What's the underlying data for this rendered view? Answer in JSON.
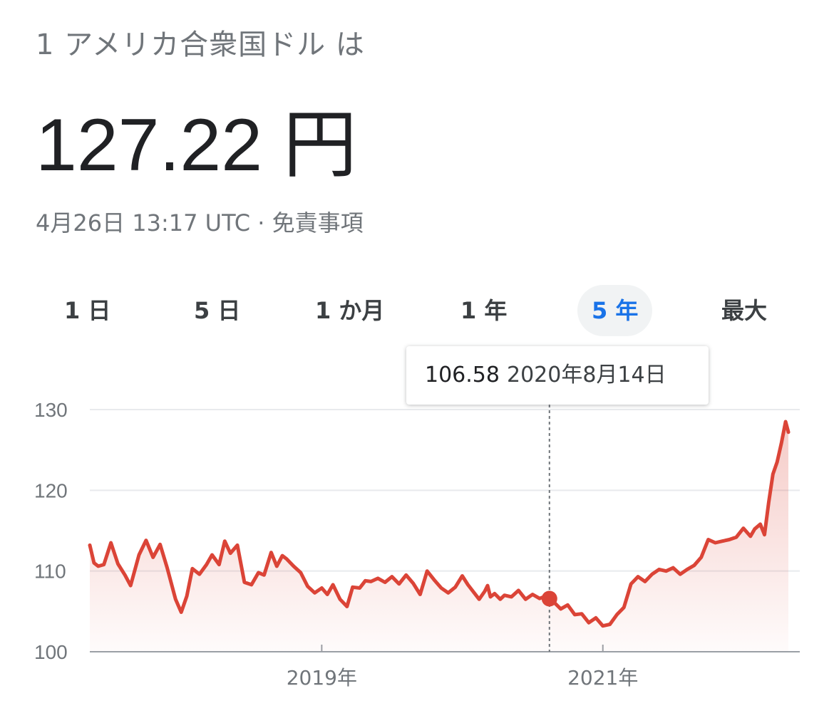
{
  "header": {
    "from_label": "1 アメリカ合衆国ドル は",
    "rate_value": "127.22 円",
    "timestamp": "4月26日 13:17 UTC",
    "separator": " · ",
    "disclaimer": "免責事項"
  },
  "range_tabs": [
    {
      "label": "1 日",
      "active": false
    },
    {
      "label": "5 日",
      "active": false
    },
    {
      "label": "1 か月",
      "active": false
    },
    {
      "label": "1 年",
      "active": false
    },
    {
      "label": "5 年",
      "active": true
    },
    {
      "label": "最大",
      "active": false
    }
  ],
  "tooltip": {
    "value": "106.58",
    "date": "2020年8月14日"
  },
  "colors": {
    "line": "#db4437",
    "fill": "#db4437",
    "accent": "#1a73e8",
    "grid": "#e8eaed"
  },
  "chart_data": {
    "type": "area",
    "title": "",
    "xlabel": "",
    "ylabel": "",
    "ylim": [
      100,
      130
    ],
    "yticks": [
      100,
      110,
      120,
      130
    ],
    "xticks": [
      "2019年",
      "2021年"
    ],
    "xtick_years": [
      2019,
      2021
    ],
    "xlim_years": [
      2017.35,
      2022.32
    ],
    "grid": true,
    "highlight": {
      "year": 2020.62,
      "value": 106.58
    },
    "series": [
      {
        "x": [
          2017.35,
          2017.38,
          2017.41,
          2017.45,
          2017.5,
          2017.55,
          2017.6,
          2017.64,
          2017.7,
          2017.75,
          2017.8,
          2017.85,
          2017.9,
          2017.96,
          2018.0,
          2018.04,
          2018.08,
          2018.13,
          2018.18,
          2018.22,
          2018.27,
          2018.31,
          2018.35,
          2018.4,
          2018.45,
          2018.5,
          2018.55,
          2018.59,
          2018.64,
          2018.68,
          2018.72,
          2018.75,
          2018.8,
          2018.85,
          2018.9,
          2018.95,
          2019.0,
          2019.04,
          2019.08,
          2019.13,
          2019.18,
          2019.22,
          2019.27,
          2019.31,
          2019.35,
          2019.4,
          2019.45,
          2019.5,
          2019.55,
          2019.6,
          2019.65,
          2019.7,
          2019.75,
          2019.8,
          2019.85,
          2019.9,
          2019.95,
          2020.0,
          2020.04,
          2020.08,
          2020.12,
          2020.16,
          2020.18,
          2020.2,
          2020.23,
          2020.27,
          2020.3,
          2020.35,
          2020.4,
          2020.45,
          2020.5,
          2020.55,
          2020.58,
          2020.62,
          2020.66,
          2020.7,
          2020.75,
          2020.8,
          2020.85,
          2020.9,
          2020.95,
          2021.0,
          2021.05,
          2021.1,
          2021.15,
          2021.2,
          2021.25,
          2021.3,
          2021.35,
          2021.4,
          2021.45,
          2021.5,
          2021.55,
          2021.6,
          2021.65,
          2021.7,
          2021.75,
          2021.8,
          2021.85,
          2021.9,
          2021.95,
          2022.0,
          2022.05,
          2022.08,
          2022.12,
          2022.15,
          2022.18,
          2022.21,
          2022.24,
          2022.27,
          2022.3,
          2022.32
        ],
        "values": [
          113.2,
          111.0,
          110.6,
          110.8,
          113.5,
          110.9,
          109.5,
          108.2,
          112.0,
          113.8,
          111.7,
          113.3,
          110.4,
          106.5,
          104.9,
          106.9,
          110.3,
          109.6,
          110.8,
          112.0,
          110.8,
          113.7,
          112.2,
          113.2,
          108.6,
          108.3,
          109.8,
          109.5,
          112.3,
          110.6,
          111.9,
          111.5,
          110.6,
          109.8,
          108.1,
          107.3,
          107.9,
          107.1,
          108.3,
          106.5,
          105.6,
          108.0,
          107.9,
          108.8,
          108.7,
          109.1,
          108.6,
          109.3,
          108.4,
          109.5,
          108.5,
          107.1,
          110.0,
          108.9,
          107.9,
          107.3,
          108.0,
          109.4,
          108.3,
          107.4,
          106.5,
          107.5,
          108.2,
          106.8,
          107.2,
          106.5,
          107.0,
          106.8,
          107.6,
          106.5,
          107.1,
          106.6,
          106.8,
          106.58,
          106.0,
          105.3,
          105.8,
          104.6,
          104.7,
          103.6,
          104.2,
          103.2,
          103.4,
          104.6,
          105.5,
          108.4,
          109.3,
          108.7,
          109.6,
          110.2,
          110.0,
          110.4,
          109.6,
          110.2,
          110.7,
          111.7,
          113.9,
          113.5,
          113.7,
          113.9,
          114.2,
          115.3,
          114.3,
          115.2,
          115.8,
          114.5,
          118.5,
          122.0,
          123.5,
          125.8,
          128.5,
          127.2
        ]
      }
    ]
  }
}
